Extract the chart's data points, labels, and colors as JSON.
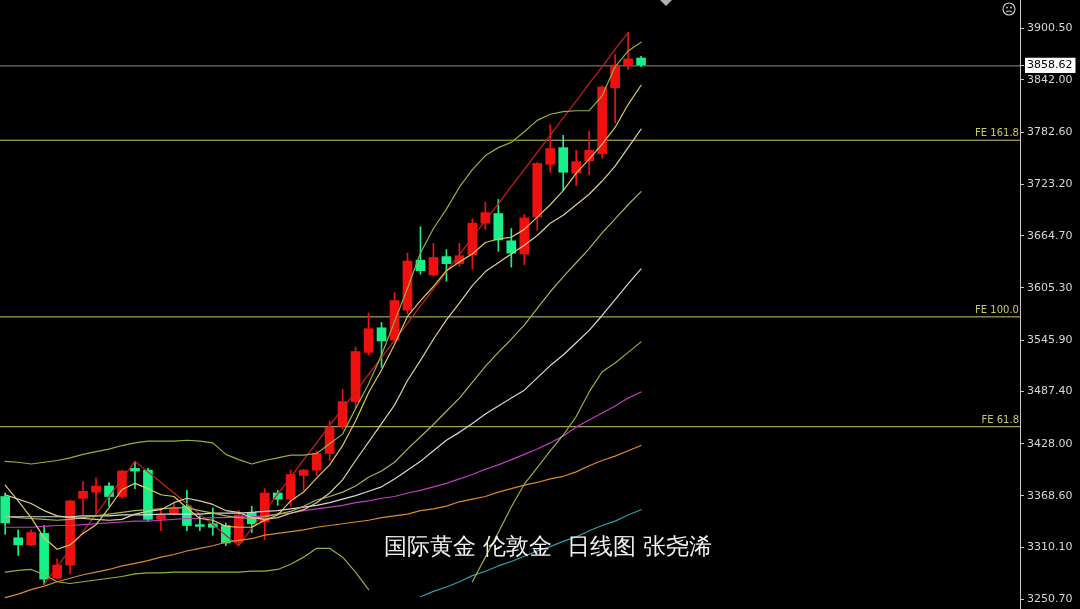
{
  "chart_data": {
    "type": "candlestick",
    "categories": [
      null,
      null,
      null,
      null,
      null,
      null,
      null,
      null,
      null,
      null,
      null,
      null,
      null,
      null,
      null,
      null,
      null,
      null,
      null,
      null,
      null,
      null,
      null,
      null,
      null,
      null,
      null,
      null,
      null,
      null,
      null,
      null,
      null,
      null,
      null,
      null,
      null,
      null,
      null,
      null,
      null,
      null,
      null,
      null,
      null,
      null,
      null,
      null,
      null,
      null
    ],
    "ohlc": [
      [
        3368,
        3372,
        3325,
        3338
      ],
      [
        3321,
        3330,
        3301,
        3313
      ],
      [
        3313,
        3330,
        3312,
        3327
      ],
      [
        3326,
        3335,
        3268,
        3274
      ],
      [
        3275,
        3297,
        3274,
        3290
      ],
      [
        3290,
        3364,
        3280,
        3363
      ],
      [
        3366,
        3385,
        3347,
        3374
      ],
      [
        3373,
        3389,
        3349,
        3380
      ],
      [
        3380,
        3384,
        3357,
        3368
      ],
      [
        3368,
        3398,
        3366,
        3397
      ],
      [
        3400,
        3408,
        3377,
        3397
      ],
      [
        3398,
        3400,
        3340,
        3342
      ],
      [
        3342,
        3355,
        3329,
        3347
      ],
      [
        3348,
        3361,
        3347,
        3355
      ],
      [
        3357,
        3375,
        3329,
        3335
      ],
      [
        3336,
        3346,
        3329,
        3334
      ],
      [
        3337,
        3355,
        3324,
        3333
      ],
      [
        3335,
        3338,
        3312,
        3315
      ],
      [
        3316,
        3352,
        3312,
        3347
      ],
      [
        3350,
        3357,
        3327,
        3337
      ],
      [
        3339,
        3377,
        3319,
        3372
      ],
      [
        3372,
        3375,
        3358,
        3365
      ],
      [
        3365,
        3398,
        3357,
        3393
      ],
      [
        3392,
        3399,
        3375,
        3398
      ],
      [
        3398,
        3420,
        3392,
        3417
      ],
      [
        3417,
        3454,
        3409,
        3447
      ],
      [
        3448,
        3490,
        3445,
        3476
      ],
      [
        3476,
        3538,
        3469,
        3533
      ],
      [
        3532,
        3577,
        3529,
        3559
      ],
      [
        3560,
        3566,
        3515,
        3545
      ],
      [
        3546,
        3600,
        3544,
        3591
      ],
      [
        3580,
        3645,
        3576,
        3636
      ],
      [
        3637,
        3675,
        3621,
        3625
      ],
      [
        3620,
        3656,
        3619,
        3640
      ],
      [
        3641,
        3649,
        3613,
        3633
      ],
      [
        3633,
        3656,
        3630,
        3642
      ],
      [
        3643,
        3684,
        3627,
        3679
      ],
      [
        3679,
        3703,
        3672,
        3691
      ],
      [
        3690,
        3706,
        3647,
        3660
      ],
      [
        3659,
        3673,
        3629,
        3645
      ],
      [
        3644,
        3689,
        3632,
        3685
      ],
      [
        3686,
        3748,
        3671,
        3747
      ],
      [
        3746,
        3791,
        3737,
        3764
      ],
      [
        3765,
        3779,
        3716,
        3737
      ],
      [
        3736,
        3762,
        3722,
        3749
      ],
      [
        3750,
        3784,
        3734,
        3762
      ],
      [
        3758,
        3835,
        3753,
        3834
      ],
      [
        3833,
        3871,
        3793,
        3859
      ],
      [
        3859,
        3896,
        3854,
        3866
      ],
      [
        3867,
        3869,
        3857,
        3859
      ]
    ],
    "colors": [
      "#18f08a",
      "#18f08a",
      "#f01010",
      "#18f08a",
      "#f01010",
      "#f01010",
      "#f01010",
      "#f01010",
      "#18f08a",
      "#f01010",
      "#18f08a",
      "#18f08a",
      "#f01010",
      "#f01010",
      "#18f08a",
      "#18f08a",
      "#18f08a",
      "#18f08a",
      "#f01010",
      "#18f08a",
      "#f01010",
      "#18f08a",
      "#f01010",
      "#f01010",
      "#f01010",
      "#f01010",
      "#f01010",
      "#f01010",
      "#f01010",
      "#18f08a",
      "#f01010",
      "#f01010",
      "#18f08a",
      "#f01010",
      "#18f08a",
      "#f01010",
      "#f01010",
      "#f01010",
      "#18f08a",
      "#18f08a",
      "#f01010",
      "#f01010",
      "#f01010",
      "#18f08a",
      "#f01010",
      "#f01010",
      "#f01010",
      "#f01010",
      "#f01010",
      "#18f08a"
    ],
    "series": [
      {
        "type": "line",
        "color": "#dccb5a",
        "values": [
          3381,
          3363,
          3344,
          3321,
          3308,
          3313,
          3326,
          3336,
          3355,
          3376,
          3383,
          3377,
          3370,
          3368,
          3355,
          3343,
          3341,
          3334,
          3333,
          3333,
          3341,
          3347,
          3363,
          3373,
          3389,
          3404,
          3426,
          3454,
          3486,
          3512,
          3541,
          3573,
          3591,
          3607,
          3625,
          3635,
          3644,
          3657,
          3661,
          3663,
          3672,
          3686,
          3700,
          3716,
          3736,
          3752,
          3769,
          3788,
          3814,
          3836
        ]
      },
      {
        "type": "line",
        "color": "#d9cf9a",
        "values": [
          3370,
          3365,
          3360,
          3352,
          3346,
          3344,
          3343,
          3342,
          3341,
          3342,
          3348,
          3351,
          3353,
          3361,
          3366,
          3363,
          3359,
          3352,
          3350,
          3344,
          3342,
          3344,
          3349,
          3353,
          3361,
          3372,
          3387,
          3409,
          3430,
          3451,
          3472,
          3500,
          3523,
          3547,
          3569,
          3588,
          3608,
          3624,
          3634,
          3644,
          3654,
          3665,
          3679,
          3688,
          3700,
          3712,
          3727,
          3744,
          3765,
          3786
        ]
      },
      {
        "type": "line",
        "color": "#a9b454",
        "values": [
          3345,
          3344,
          3343,
          3342,
          3341,
          3342,
          3344,
          3346,
          3348,
          3350,
          3352,
          3353,
          3354,
          3355,
          3355,
          3352,
          3349,
          3346,
          3344,
          3343,
          3345,
          3348,
          3351,
          3357,
          3364,
          3368,
          3373,
          3380,
          3390,
          3397,
          3407,
          3422,
          3436,
          3450,
          3465,
          3480,
          3498,
          3516,
          3532,
          3547,
          3563,
          3582,
          3601,
          3618,
          3634,
          3650,
          3668,
          3684,
          3700,
          3715
        ]
      },
      {
        "type": "line",
        "color": "#8fb33c",
        "values": [
          3408,
          3407,
          3405,
          3407,
          3409,
          3412,
          3416,
          3419,
          3422,
          3426,
          3429,
          3431,
          3431,
          3431,
          3432,
          3431,
          3429,
          3416,
          3410,
          3405,
          3409,
          3412,
          3415,
          3415,
          3417,
          3428,
          3439,
          3468,
          3496,
          3529,
          3567,
          3605,
          3645,
          3673,
          3695,
          3720,
          3740,
          3756,
          3765,
          3771,
          3783,
          3796,
          3803,
          3806,
          3807,
          3807,
          3824,
          3857,
          3875,
          3885
        ]
      },
      {
        "type": "line",
        "color": "#8fb33c",
        "values": [
          3282,
          3284,
          3285,
          3279,
          3271,
          3269,
          3271,
          3273,
          3275,
          3277,
          3280,
          3281,
          3281,
          3282,
          3282,
          3282,
          3282,
          3282,
          3282,
          3283,
          3283,
          3285,
          3291,
          3299,
          3309,
          3309,
          3299,
          3282,
          3262,
          null,
          null,
          null,
          null,
          null,
          null,
          null,
          3271,
          3299,
          3327,
          3356,
          3382,
          3401,
          3420,
          3438,
          3459,
          3487,
          3510,
          3520,
          3532,
          3544
        ]
      },
      {
        "type": "line",
        "color": "#d8d8d8",
        "values": [
          3345,
          3345,
          3345,
          3345,
          3345,
          3345,
          3346,
          3346,
          3346,
          3347,
          3347,
          3347,
          3348,
          3348,
          3348,
          3348,
          3349,
          3349,
          3349,
          3350,
          3351,
          3352,
          3354,
          3356,
          3358,
          3361,
          3365,
          3369,
          3374,
          3379,
          3388,
          3398,
          3408,
          3420,
          3432,
          3441,
          3451,
          3462,
          3471,
          3480,
          3489,
          3503,
          3517,
          3529,
          3543,
          3557,
          3574,
          3592,
          3610,
          3627
        ]
      },
      {
        "type": "line",
        "color": "#c03cc0",
        "values": [
          3333,
          3333,
          3333,
          3334,
          3335,
          3335,
          3336,
          3337,
          3338,
          3339,
          3340,
          3340,
          3341,
          3342,
          3343,
          3343,
          3344,
          3344,
          3345,
          3345,
          3346,
          3348,
          3349,
          3352,
          3354,
          3356,
          3358,
          3361,
          3363,
          3366,
          3368,
          3372,
          3375,
          3379,
          3383,
          3388,
          3393,
          3399,
          3404,
          3410,
          3416,
          3422,
          3429,
          3437,
          3447,
          3455,
          3463,
          3471,
          3480,
          3487
        ]
      },
      {
        "type": "line",
        "color": "#d98a30",
        "values": [
          3253,
          3257,
          3262,
          3266,
          3271,
          3275,
          3279,
          3282,
          3285,
          3289,
          3292,
          3295,
          3299,
          3302,
          3306,
          3309,
          3312,
          3316,
          3318,
          3320,
          3324,
          3326,
          3328,
          3330,
          3333,
          3335,
          3337,
          3339,
          3341,
          3344,
          3346,
          3348,
          3352,
          3354,
          3357,
          3362,
          3365,
          3368,
          3373,
          3377,
          3381,
          3384,
          3388,
          3391,
          3396,
          3403,
          3409,
          3414,
          3420,
          3426
        ]
      },
      {
        "type": "line",
        "color": "#2aa0b0",
        "values": [
          null,
          null,
          null,
          null,
          null,
          null,
          null,
          null,
          null,
          null,
          null,
          null,
          null,
          null,
          null,
          null,
          null,
          null,
          null,
          null,
          null,
          null,
          null,
          null,
          null,
          null,
          null,
          null,
          null,
          null,
          null,
          null,
          3254,
          3260,
          3265,
          3271,
          3278,
          3283,
          3289,
          3294,
          3300,
          3306,
          3311,
          3317,
          3322,
          3329,
          3335,
          3340,
          3347,
          3353
        ]
      },
      {
        "type": "line",
        "color": "#c81e1e",
        "values": [
          null,
          null,
          null,
          3268,
          3288,
          3308,
          3328,
          3348,
          3368,
          3388,
          3408,
          3396,
          3384,
          3372,
          3360,
          3348,
          3336,
          3324,
          3312,
          3332,
          3351,
          3371,
          3390,
          3410,
          3429,
          3449,
          3468,
          3487,
          3507,
          3526,
          3546,
          3565,
          3585,
          3604,
          3624,
          3643,
          3663,
          3682,
          3701,
          3721,
          3740,
          3760,
          3779,
          3799,
          3818,
          3838,
          3857,
          3877,
          3896,
          null
        ]
      }
    ],
    "ylim": [
      3240,
      3933
    ],
    "yticks": [
      {
        "value": 3900.5,
        "label": "3900.50"
      },
      {
        "value": 3858.62,
        "label": "3858.62"
      },
      {
        "value": 3842.0,
        "label": "3842.00"
      },
      {
        "value": 3782.6,
        "label": "3782.60"
      },
      {
        "value": 3723.2,
        "label": "3723.20"
      },
      {
        "value": 3664.7,
        "label": "3664.70"
      },
      {
        "value": 3605.3,
        "label": "3605.30"
      },
      {
        "value": 3545.9,
        "label": "3545.90"
      },
      {
        "value": 3487.4,
        "label": "3487.40"
      },
      {
        "value": 3428.0,
        "label": "3428.00"
      },
      {
        "value": 3368.6,
        "label": "3368.60"
      },
      {
        "value": 3310.1,
        "label": "3310.10"
      },
      {
        "value": 3250.7,
        "label": "3250.70"
      }
    ],
    "ref_lines": [
      {
        "axis": "y",
        "value": 3858.62,
        "color": "#8c8c8c"
      },
      {
        "axis": "y",
        "value": 3774,
        "label": "FE 161.8",
        "color": "#c8c864"
      },
      {
        "axis": "y",
        "value": 3573,
        "label": "FE 100.0",
        "color": "#c8c864"
      },
      {
        "axis": "y",
        "value": 3448,
        "label": "FE 61.8",
        "color": "#c8c864"
      }
    ],
    "annotations": [
      "国际黄金 伦敦金  日线图 张尧浠"
    ],
    "tick_labels": "y"
  }
}
